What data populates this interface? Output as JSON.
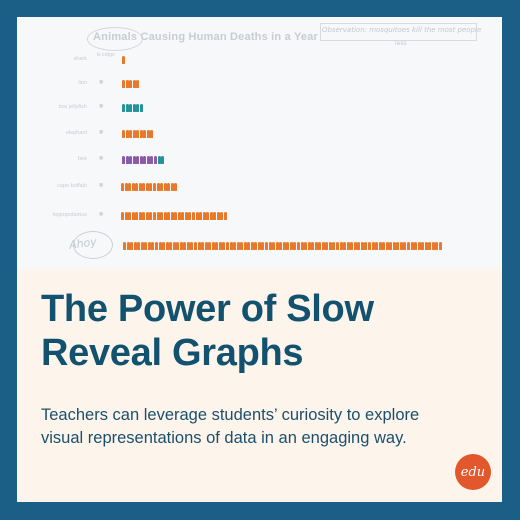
{
  "chart": {
    "title": "Animals Causing Human Deaths in a Year",
    "annotation_top": "Observation: mosquitoes kill the most people",
    "annotation_sub": "less",
    "annotation_note": "Ahoy",
    "rows": [
      {
        "label": "shark",
        "icon_label": "b-cdigo",
        "count": 1,
        "color": "#e8782a"
      },
      {
        "label": "lion",
        "icon": "lion-icon",
        "count": 5,
        "color": "#e8782a"
      },
      {
        "label": "box jellyfish",
        "icon": "jellyfish-icon",
        "count": 6,
        "color": "#25939a"
      },
      {
        "label": "elephant",
        "icon": "elephant-icon",
        "count": 9,
        "color": "#e8782a"
      },
      {
        "label": "bee",
        "icon": "bee-icon",
        "count": 12,
        "color": "#8a5ba8",
        "accent_count": 2,
        "accent_color": "#25939a"
      },
      {
        "label": "cape buffalo",
        "icon": "buffalo-icon",
        "count": 16,
        "color": "#e8782a"
      },
      {
        "label": "hippopotamus",
        "icon": "hippo-icon",
        "count": 30,
        "color": "#e8782a"
      },
      {
        "label": "",
        "icon": "mosquito-icon",
        "count": 90,
        "color": "#e8782a"
      }
    ]
  },
  "headline": "The Power of Slow Reveal Graphs",
  "subtext": "Teachers can leverage students’ curiosity to explore visual representations of data in an engaging way.",
  "logo": {
    "text": "edu",
    "color": "#e2572b"
  },
  "colors": {
    "frame": "#1c5f86",
    "card": "#fdf4ec",
    "headline": "#12526f"
  }
}
